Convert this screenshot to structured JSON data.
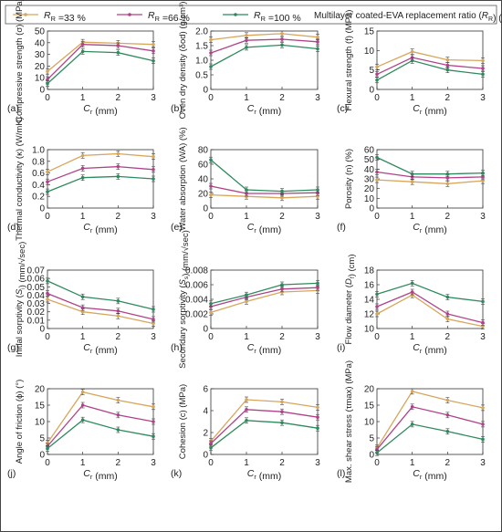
{
  "legend": {
    "entries": [
      {
        "label": "R_R =33 %",
        "color": "#d8a65b"
      },
      {
        "label": "R_R =66 %",
        "color": "#b0428a"
      },
      {
        "label": "R_R =100 %",
        "color": "#2e8a5e"
      }
    ],
    "note": "Multilayer coated-EVA replacement ratio (R_R) (%)"
  },
  "chart_data": [
    {
      "type": "line",
      "panel": "(a)",
      "ylabel": "Compressive strength (σ) (MPa)",
      "xlabel": "C_r (mm)",
      "x": [
        0,
        1,
        2,
        3
      ],
      "ylim": [
        0,
        50
      ],
      "yticks": [
        "0",
        "10",
        "20",
        "30",
        "40",
        "50"
      ],
      "series": [
        {
          "name": "R_R =33 %",
          "values": [
            15.5,
            40.5,
            39.5,
            38.5
          ]
        },
        {
          "name": "R_R =66 %",
          "values": [
            8.5,
            38.5,
            37.5,
            33
          ]
        },
        {
          "name": "R_R =100 %",
          "values": [
            5,
            32.5,
            31.5,
            24.5
          ]
        }
      ]
    },
    {
      "type": "line",
      "panel": "(b)",
      "ylabel": "Oven dry density (δod) (g/cm³)",
      "xlabel": "C_r (mm)",
      "x": [
        0,
        1,
        2,
        3
      ],
      "ylim": [
        0,
        2.0
      ],
      "yticks": [
        "0",
        "0.5",
        "1.0",
        "1.5",
        "2.0"
      ],
      "series": [
        {
          "name": "R_R =33 %",
          "values": [
            1.7,
            1.85,
            1.91,
            1.79
          ]
        },
        {
          "name": "R_R =66 %",
          "values": [
            1.25,
            1.68,
            1.72,
            1.63
          ]
        },
        {
          "name": "R_R =100 %",
          "values": [
            0.78,
            1.44,
            1.52,
            1.39
          ]
        }
      ]
    },
    {
      "type": "line",
      "panel": "(c)",
      "ylabel": "Flexural strength (f) (MPa)",
      "xlabel": "C_r (mm)",
      "x": [
        0,
        1,
        2,
        3
      ],
      "ylim": [
        0,
        15
      ],
      "yticks": [
        "0",
        "5",
        "10",
        "15"
      ],
      "series": [
        {
          "name": "R_R =33 %",
          "values": [
            5.8,
            9.7,
            7.6,
            7.4
          ]
        },
        {
          "name": "R_R =66 %",
          "values": [
            3.9,
            8.2,
            6.2,
            5.4
          ]
        },
        {
          "name": "R_R =100 %",
          "values": [
            2.4,
            7.4,
            5,
            3.9
          ]
        }
      ]
    },
    {
      "type": "line",
      "panel": "(d)",
      "ylabel": "Thermal conductivity (κ) (W/mK)",
      "xlabel": "C_r (mm)",
      "x": [
        0,
        1,
        2,
        3
      ],
      "ylim": [
        0,
        1.0
      ],
      "yticks": [
        "0",
        "0.2",
        "0.4",
        "0.6",
        "0.8",
        "1.0"
      ],
      "series": [
        {
          "name": "R_R =33 %",
          "values": [
            0.62,
            0.9,
            0.93,
            0.88
          ]
        },
        {
          "name": "R_R =66 %",
          "values": [
            0.45,
            0.68,
            0.71,
            0.66
          ]
        },
        {
          "name": "R_R =100 %",
          "values": [
            0.28,
            0.52,
            0.54,
            0.5
          ]
        }
      ]
    },
    {
      "type": "line",
      "panel": "(e)",
      "ylabel": "Water absorption (WA) (%)",
      "xlabel": "C_r (mm)",
      "x": [
        0,
        1,
        2,
        3
      ],
      "ylim": [
        0,
        80
      ],
      "yticks": [
        "0",
        "20",
        "40",
        "60",
        "80"
      ],
      "series": [
        {
          "name": "R_R =33 %",
          "values": [
            18,
            16,
            14,
            16
          ]
        },
        {
          "name": "R_R =66 %",
          "values": [
            30,
            20,
            20,
            21
          ]
        },
        {
          "name": "R_R =100 %",
          "values": [
            66,
            25,
            23,
            25
          ]
        }
      ]
    },
    {
      "type": "line",
      "panel": "(f)",
      "ylabel": "Porosity (n) (%)",
      "xlabel": "C_r (mm)",
      "x": [
        0,
        1,
        2,
        3
      ],
      "ylim": [
        0,
        60
      ],
      "yticks": [
        "0",
        "10",
        "20",
        "30",
        "40",
        "50",
        "60"
      ],
      "series": [
        {
          "name": "R_R =33 %",
          "values": [
            29,
            27,
            25,
            28
          ]
        },
        {
          "name": "R_R =66 %",
          "values": [
            37,
            32,
            31,
            32
          ]
        },
        {
          "name": "R_R =100 %",
          "values": [
            52,
            35,
            35,
            36
          ]
        }
      ]
    },
    {
      "type": "line",
      "panel": "(g)",
      "ylabel": "Initial sorptivity (S_i) (mm/√sec)",
      "xlabel": "C_r (mm)",
      "x": [
        0,
        1,
        2,
        3
      ],
      "ylim": [
        0,
        0.07
      ],
      "yticks": [
        "0",
        "0.01",
        "0.02",
        "0.03",
        "0.04",
        "0.05",
        "0.06",
        "0.07"
      ],
      "series": [
        {
          "name": "R_R =33 %",
          "values": [
            0.035,
            0.02,
            0.015,
            0.006
          ]
        },
        {
          "name": "R_R =66 %",
          "values": [
            0.042,
            0.025,
            0.021,
            0.011
          ]
        },
        {
          "name": "R_R =100 %",
          "values": [
            0.057,
            0.038,
            0.033,
            0.023
          ]
        }
      ]
    },
    {
      "type": "line",
      "panel": "(h)",
      "ylabel": "Secondary sorptivity (S_s) (mm/√sec)",
      "xlabel": "C_r (mm)",
      "x": [
        0,
        1,
        2,
        3
      ],
      "ylim": [
        0,
        0.008
      ],
      "yticks": [
        "0",
        "0.002",
        "0.004",
        "0.006",
        "0.008"
      ],
      "series": [
        {
          "name": "R_R =33 %",
          "values": [
            0.0022,
            0.0037,
            0.005,
            0.0052
          ]
        },
        {
          "name": "R_R =66 %",
          "values": [
            0.003,
            0.0043,
            0.0054,
            0.0056
          ]
        },
        {
          "name": "R_R =100 %",
          "values": [
            0.0034,
            0.0046,
            0.006,
            0.0062
          ]
        }
      ]
    },
    {
      "type": "line",
      "panel": "(i)",
      "ylabel": "Flow diameter (D_f) (cm)",
      "xlabel": "C_r (mm)",
      "x": [
        0,
        1,
        2,
        3
      ],
      "ylim": [
        10,
        18
      ],
      "yticks": [
        "10",
        "12",
        "14",
        "16",
        "18"
      ],
      "series": [
        {
          "name": "R_R =33 %",
          "values": [
            12,
            14.6,
            11.3,
            10.3
          ]
        },
        {
          "name": "R_R =66 %",
          "values": [
            13,
            15,
            12,
            10.8
          ]
        },
        {
          "name": "R_R =100 %",
          "values": [
            14.7,
            16.2,
            14.3,
            13.7
          ]
        }
      ]
    },
    {
      "type": "line",
      "panel": "(j)",
      "ylabel": "Angle of friction (ϕ) (°)",
      "xlabel": "C_r (mm)",
      "x": [
        0,
        1,
        2,
        3
      ],
      "ylim": [
        0,
        20
      ],
      "yticks": [
        "0",
        "5",
        "10",
        "15",
        "20"
      ],
      "series": [
        {
          "name": "R_R =33 %",
          "values": [
            3.5,
            19,
            16.5,
            14.5
          ]
        },
        {
          "name": "R_R =66 %",
          "values": [
            2.5,
            15,
            12,
            10
          ]
        },
        {
          "name": "R_R =100 %",
          "values": [
            1.8,
            10.5,
            7.5,
            5.5
          ]
        }
      ]
    },
    {
      "type": "line",
      "panel": "(k)",
      "ylabel": "Cohesion (c) (MPa)",
      "xlabel": "C_r (mm)",
      "x": [
        0,
        1,
        2,
        3
      ],
      "ylim": [
        0,
        6
      ],
      "yticks": [
        "0",
        "2",
        "4",
        "6"
      ],
      "series": [
        {
          "name": "R_R =33 %",
          "values": [
            1.2,
            5,
            4.8,
            4.3
          ]
        },
        {
          "name": "R_R =66 %",
          "values": [
            1,
            4.1,
            3.9,
            3.4
          ]
        },
        {
          "name": "R_R =100 %",
          "values": [
            0.6,
            3.1,
            2.9,
            2.4
          ]
        }
      ]
    },
    {
      "type": "line",
      "panel": "(l)",
      "ylabel": "Max. shear stress (τmax) (MPa)",
      "xlabel": "C_r (mm)",
      "x": [
        0,
        1,
        2,
        3
      ],
      "ylim": [
        0,
        20
      ],
      "yticks": [
        "0",
        "5",
        "10",
        "15",
        "20"
      ],
      "series": [
        {
          "name": "R_R =33 %",
          "values": [
            2,
            19.2,
            16.5,
            14.2
          ]
        },
        {
          "name": "R_R =66 %",
          "values": [
            1.5,
            14.5,
            12,
            9.2
          ]
        },
        {
          "name": "R_R =100 %",
          "values": [
            0.5,
            9.2,
            7,
            4.6
          ]
        }
      ]
    }
  ]
}
